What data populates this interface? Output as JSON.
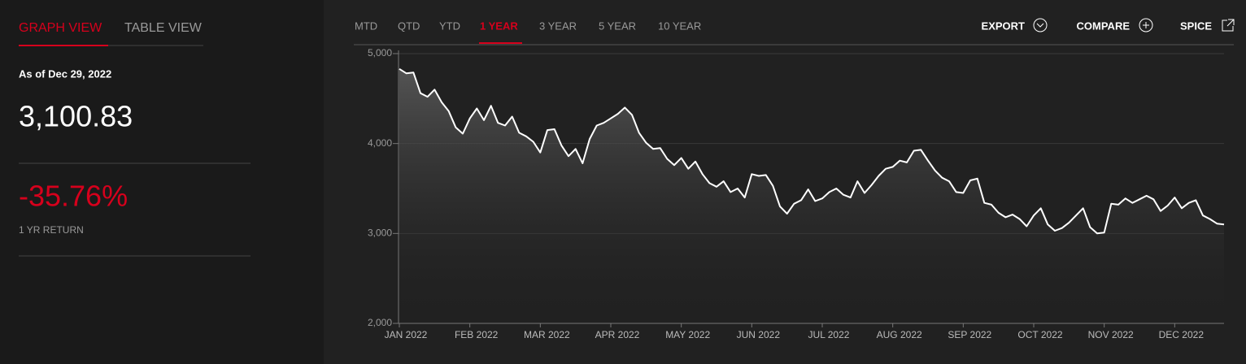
{
  "view_tabs": [
    "GRAPH VIEW",
    "TABLE VIEW"
  ],
  "as_of": "As of Dec 29, 2022",
  "level": "3,100.83",
  "return": "-35.76%",
  "return_label": "1 YR RETURN",
  "ranges": [
    "MTD",
    "QTD",
    "YTD",
    "1 YEAR",
    "3 YEAR",
    "5 YEAR",
    "10 YEAR"
  ],
  "actions": [
    "EXPORT",
    "COMPARE",
    "SPICE"
  ],
  "chart_data": {
    "type": "line",
    "color": "#ffffff",
    "categories": [
      "JAN 2022",
      null,
      null,
      null,
      null,
      null,
      null,
      null,
      null,
      null,
      "FEB 2022",
      null,
      null,
      null,
      null,
      null,
      null,
      null,
      null,
      null,
      "MAR 2022",
      null,
      null,
      null,
      null,
      null,
      null,
      null,
      null,
      null,
      "APR 2022",
      null,
      null,
      null,
      null,
      null,
      null,
      null,
      null,
      null,
      "MAY 2022",
      null,
      null,
      null,
      null,
      null,
      null,
      null,
      null,
      null,
      "JUN 2022",
      null,
      null,
      null,
      null,
      null,
      null,
      null,
      null,
      null,
      "JUL 2022",
      null,
      null,
      null,
      null,
      null,
      null,
      null,
      null,
      null,
      "AUG 2022",
      null,
      null,
      null,
      null,
      null,
      null,
      null,
      null,
      null,
      "SEP 2022",
      null,
      null,
      null,
      null,
      null,
      null,
      null,
      null,
      null,
      "OCT 2022",
      null,
      null,
      null,
      null,
      null,
      null,
      null,
      null,
      null,
      "NOV 2022",
      null,
      null,
      null,
      null,
      null,
      null,
      null,
      null,
      null,
      "DEC 2022",
      null,
      null,
      null,
      null,
      null,
      null,
      null
    ],
    "values": [
      4830,
      4780,
      4790,
      4560,
      4520,
      4600,
      4460,
      4360,
      4180,
      4110,
      4280,
      4390,
      4260,
      4420,
      4230,
      4200,
      4300,
      4120,
      4080,
      4020,
      3900,
      4150,
      4160,
      3980,
      3860,
      3940,
      3780,
      4050,
      4200,
      4230,
      4280,
      4330,
      4400,
      4320,
      4120,
      4010,
      3940,
      3950,
      3830,
      3760,
      3840,
      3720,
      3800,
      3660,
      3560,
      3520,
      3580,
      3460,
      3500,
      3400,
      3660,
      3640,
      3650,
      3530,
      3300,
      3220,
      3330,
      3370,
      3490,
      3360,
      3390,
      3460,
      3500,
      3430,
      3400,
      3580,
      3450,
      3540,
      3640,
      3720,
      3740,
      3810,
      3790,
      3920,
      3930,
      3810,
      3700,
      3620,
      3580,
      3460,
      3450,
      3590,
      3610,
      3340,
      3320,
      3230,
      3180,
      3210,
      3160,
      3080,
      3200,
      3280,
      3100,
      3030,
      3060,
      3120,
      3200,
      3280,
      3070,
      3000,
      3010,
      3330,
      3320,
      3390,
      3340,
      3380,
      3420,
      3380,
      3250,
      3310,
      3400,
      3280,
      3340,
      3370,
      3200,
      3160,
      3110,
      3100.83
    ],
    "ylim": [
      2000,
      5000
    ],
    "yticks": [
      {
        "value": 2000,
        "label": "2,000"
      },
      {
        "value": 3000,
        "label": "3,000"
      },
      {
        "value": 4000,
        "label": "4,000"
      },
      {
        "value": 5000,
        "label": "5,000"
      }
    ],
    "grid": true
  }
}
